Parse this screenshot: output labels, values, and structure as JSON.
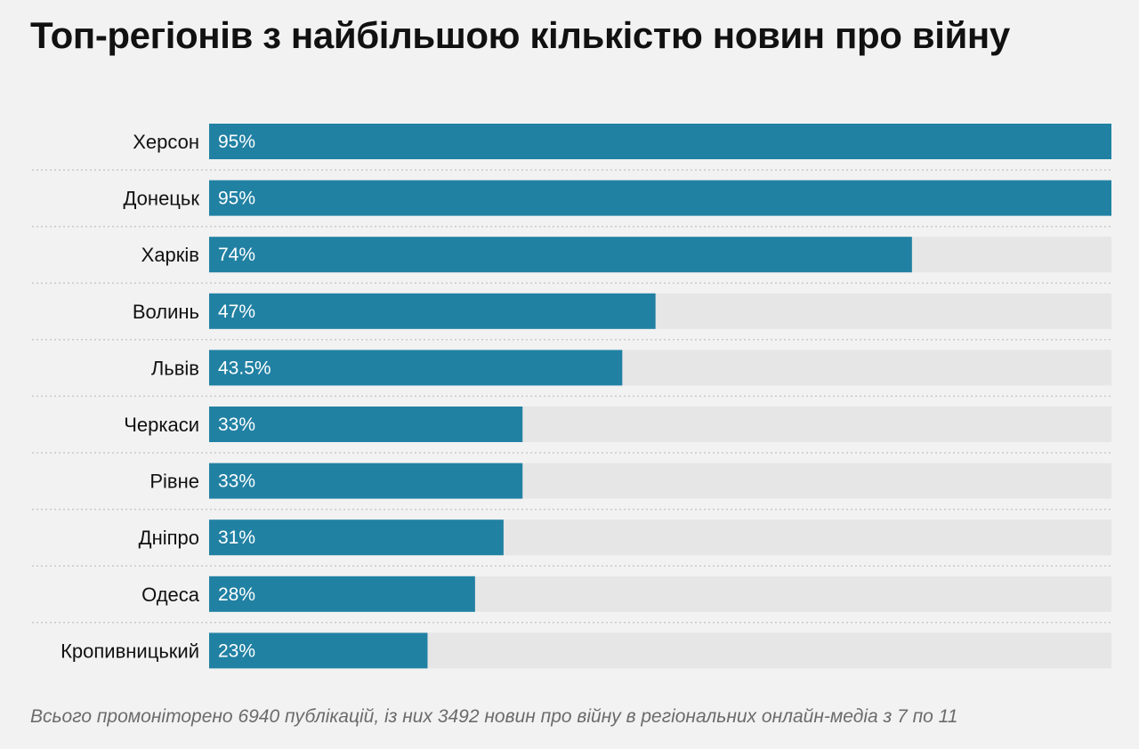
{
  "title": "Топ-регіонів з найбільшою кількістю новин про війну",
  "footnote": "Всього промоніторено 6940 публікацій, із них 3492 новин про війну в регіональних онлайн-медіа з 7 по 11",
  "colors": {
    "bar": "#2181a3",
    "track": "#e6e6e6",
    "background": "#f2f2f2",
    "separator": "#c9c9c9",
    "label": "#111111",
    "value_label": "#ffffff"
  },
  "chart_data": {
    "type": "bar",
    "orientation": "horizontal",
    "categories": [
      "Херсон",
      "Донецьк",
      "Харків",
      "Волинь",
      "Львів",
      "Черкаси",
      "Рівне",
      "Дніпро",
      "Одеса",
      "Кропивницький"
    ],
    "values": [
      95,
      95,
      74,
      47,
      43.5,
      33,
      33,
      31,
      28,
      23
    ],
    "value_labels": [
      "95%",
      "95%",
      "74%",
      "47%",
      "43.5%",
      "33%",
      "33%",
      "31%",
      "28%",
      "23%"
    ],
    "xlim": [
      0,
      95
    ],
    "grid": false,
    "legend": "none"
  }
}
